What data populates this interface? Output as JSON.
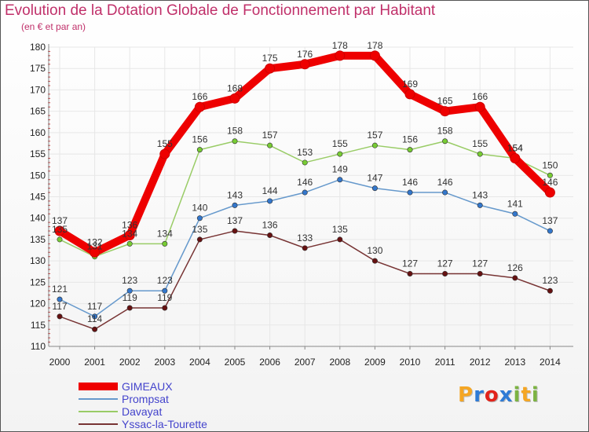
{
  "title": "Evolution de la Dotation Globale de Fonctionnement par Habitant",
  "subtitle": "(en € et par an)",
  "logo_text": "Proxiti",
  "colors": {
    "title": "#c0306a",
    "grid": "#e7e7e7",
    "axis": "#888888",
    "tick": "#cc3333",
    "label": "#333333",
    "legend_text": "#4444cc"
  },
  "chart_data": {
    "type": "line",
    "title": "Evolution de la Dotation Globale de Fonctionnement par Habitant",
    "subtitle": "(en € et par an)",
    "categories": [
      "2000",
      "2001",
      "2002",
      "2003",
      "2004",
      "2005",
      "2006",
      "2007",
      "2008",
      "2009",
      "2010",
      "2011",
      "2012",
      "2013",
      "2014"
    ],
    "ylim": [
      110,
      180
    ],
    "yticks": [
      110,
      115,
      120,
      125,
      130,
      135,
      140,
      145,
      150,
      155,
      160,
      165,
      170,
      175,
      180
    ],
    "grid": true,
    "legend_position": "bottom-left",
    "series": [
      {
        "name": "GIMEAUX",
        "color": "#ee0000",
        "marker": "#cc0000",
        "values": [
          137,
          132,
          136,
          155,
          166,
          168,
          175,
          176,
          178,
          178,
          169,
          165,
          166,
          154,
          146
        ]
      },
      {
        "name": "Prompsat",
        "color": "#6699cc",
        "marker": "#3377cc",
        "values": [
          121,
          117,
          123,
          123,
          140,
          143,
          144,
          146,
          149,
          147,
          146,
          146,
          143,
          141,
          137
        ]
      },
      {
        "name": "Davayat",
        "color": "#99cc66",
        "marker": "#77cc33",
        "values": [
          135,
          131,
          134,
          134,
          156,
          158,
          157,
          153,
          155,
          157,
          156,
          158,
          155,
          154,
          150
        ]
      },
      {
        "name": "Yssac-la-Tourette",
        "color": "#773333",
        "marker": "#661111",
        "values": [
          117,
          114,
          119,
          119,
          135,
          137,
          136,
          133,
          135,
          130,
          127,
          127,
          127,
          126,
          123
        ]
      }
    ]
  }
}
